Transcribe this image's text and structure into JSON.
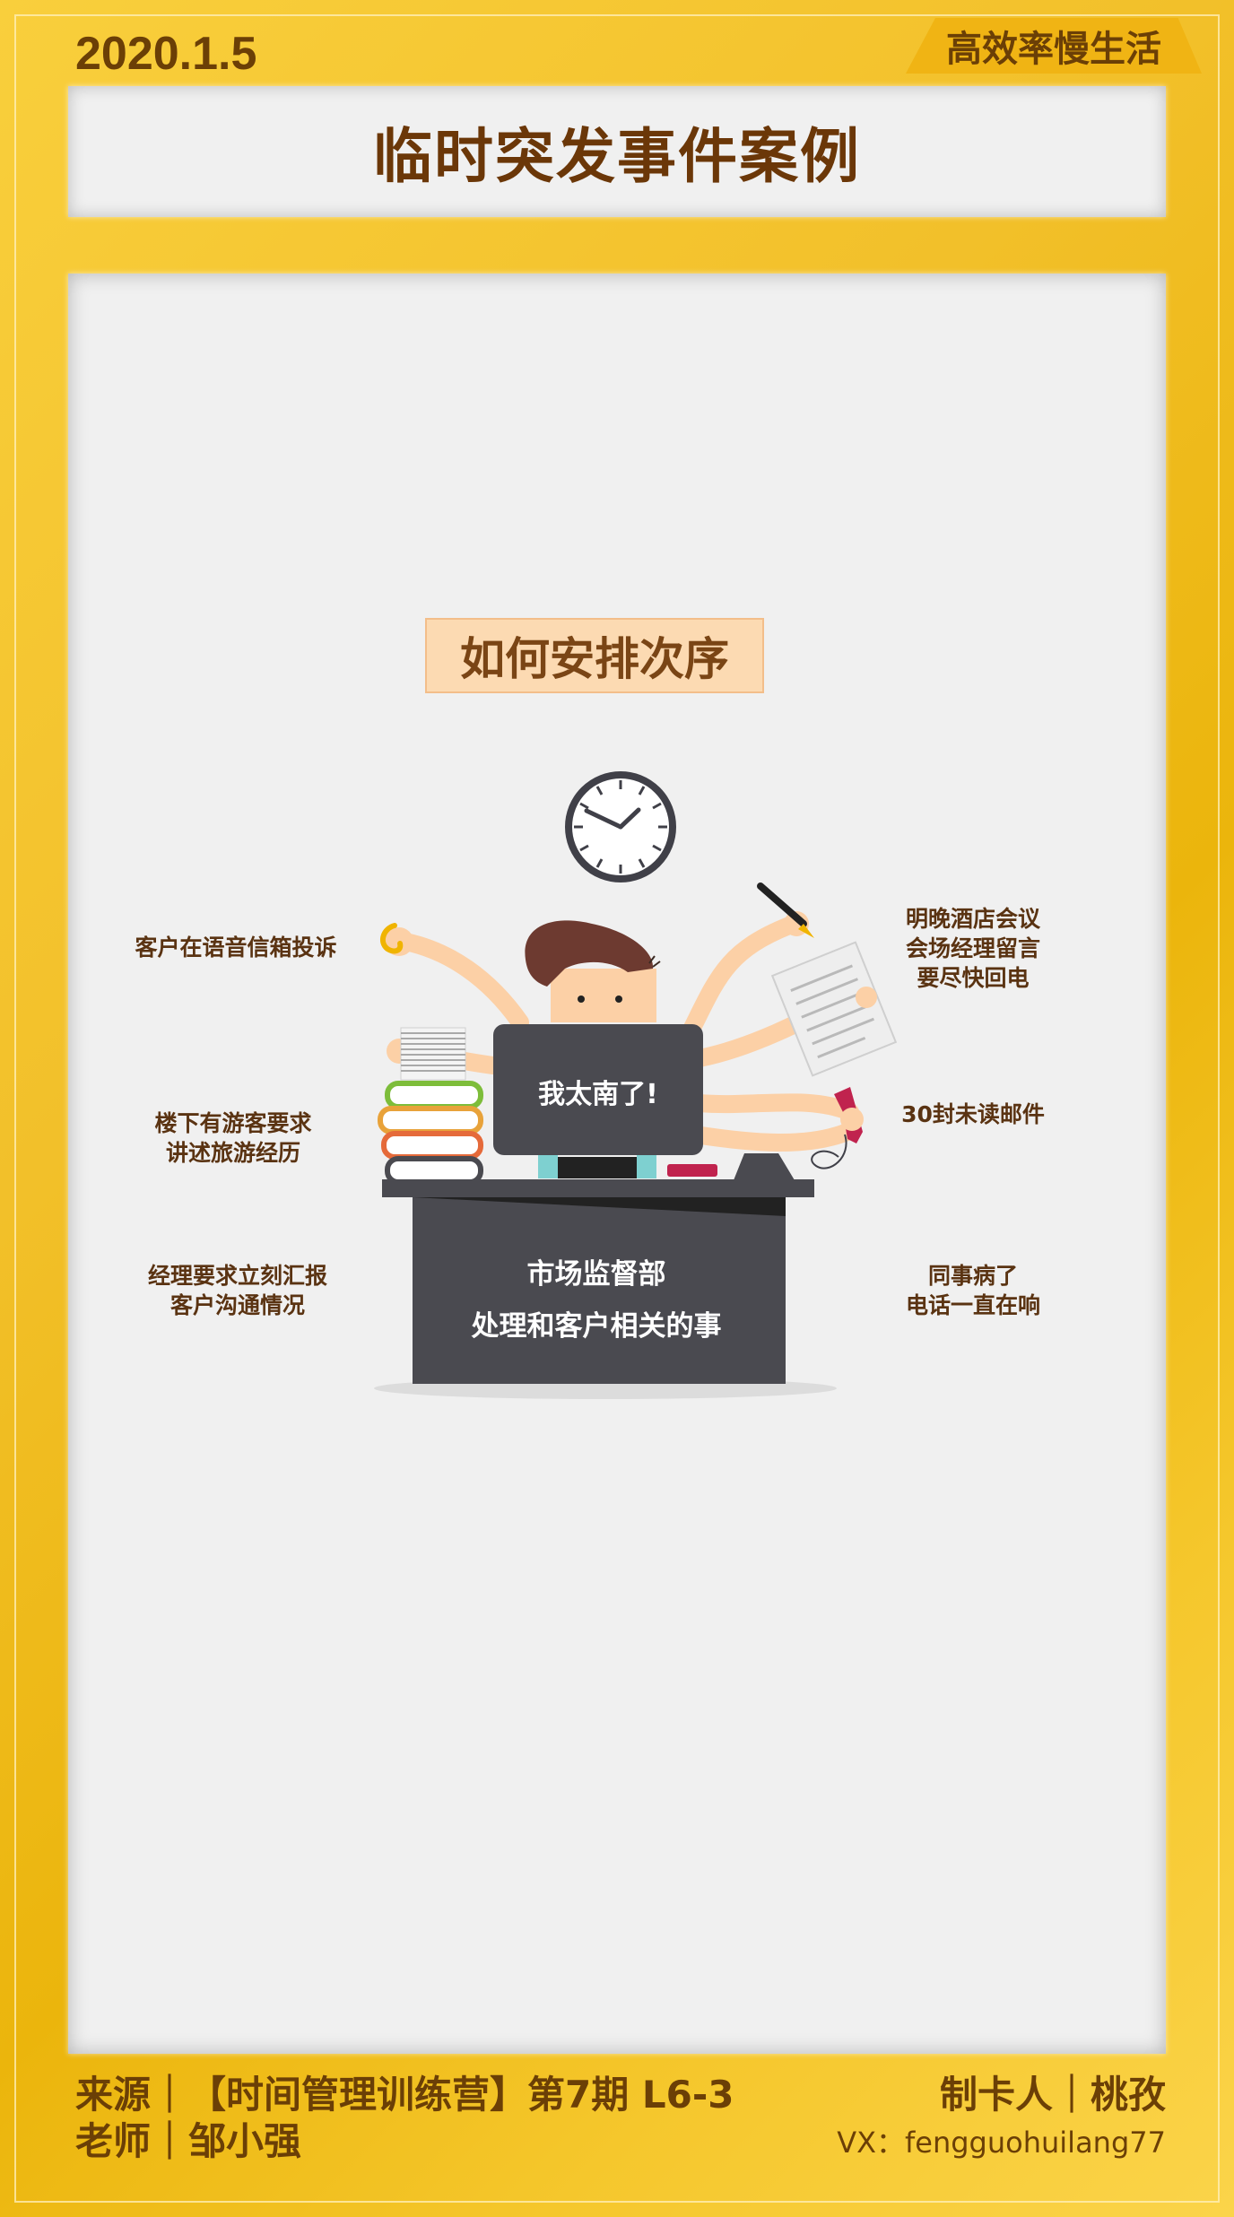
{
  "header": {
    "date": "2020.1.5",
    "brand": "高效率慢生活",
    "title": "临时突发事件案例"
  },
  "main": {
    "subtitle": "如何安排次序",
    "monitor_text": "我太南了!",
    "desk_line1": "市场监督部",
    "desk_line2": "处理和客户相关的事",
    "left_labels": [
      {
        "line1": "客户在语音信箱投诉",
        "line2": ""
      },
      {
        "line1": "楼下有游客要求",
        "line2": "讲述旅游经历"
      },
      {
        "line1": "经理要求立刻汇报",
        "line2": "客户沟通情况"
      }
    ],
    "right_labels": [
      {
        "line1": "明晚酒店会议",
        "line2": "会场经理留言",
        "line3": "要尽快回电"
      },
      {
        "line1": "30封未读邮件",
        "line2": "",
        "line3": ""
      },
      {
        "line1": "同事病了",
        "line2": "电话一直在响",
        "line3": ""
      }
    ]
  },
  "footer": {
    "source": "来源｜【时间管理训练营】第7期  L6-3",
    "teacher": "老师｜邹小强",
    "maker": "制卡人｜桃孜",
    "vx": "VX：fengguohuilang77"
  },
  "colors": {
    "background": "#f2c02a",
    "title_text": "#6b3708",
    "label_text": "#5a3312",
    "desk": "#4a4a50",
    "subtitle_bg": "#fcdab2"
  },
  "icons": [
    "clock-icon",
    "pen-icon",
    "document-icon",
    "phone-icon",
    "book-stack-icon",
    "paper-stack-icon",
    "monitor-icon",
    "desk-icon"
  ]
}
